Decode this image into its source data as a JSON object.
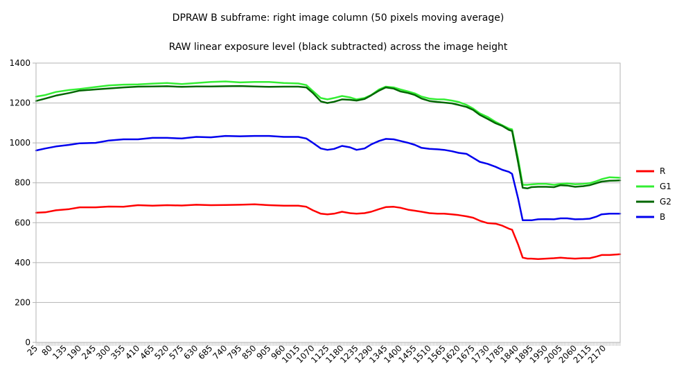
{
  "chart_data": {
    "type": "line",
    "title": "DPRAW B subframe: right image column (50 pixels moving average)",
    "subtitle": "RAW linear exposure level  (black subtracted) across the image height",
    "xlabel": "",
    "ylabel": "",
    "ylim": [
      0,
      1400
    ],
    "yticks": [
      0,
      200,
      400,
      600,
      800,
      1000,
      1200,
      1400
    ],
    "xlim": [
      25,
      2230
    ],
    "xticks": [
      25,
      80,
      135,
      190,
      245,
      300,
      355,
      410,
      465,
      520,
      575,
      630,
      685,
      740,
      795,
      850,
      905,
      960,
      1015,
      1070,
      1125,
      1180,
      1235,
      1290,
      1345,
      1400,
      1455,
      1510,
      1565,
      1620,
      1675,
      1730,
      1785,
      1840,
      1895,
      1950,
      2005,
      2060,
      2115,
      2170
    ],
    "grid": "horizontal",
    "legend_position": "right",
    "series": [
      {
        "name": "R",
        "color": "#ff0000",
        "points": [
          [
            25,
            650
          ],
          [
            60,
            652
          ],
          [
            100,
            662
          ],
          [
            150,
            668
          ],
          [
            190,
            677
          ],
          [
            250,
            677
          ],
          [
            300,
            681
          ],
          [
            355,
            680
          ],
          [
            410,
            688
          ],
          [
            465,
            685
          ],
          [
            520,
            688
          ],
          [
            575,
            686
          ],
          [
            630,
            690
          ],
          [
            685,
            688
          ],
          [
            740,
            689
          ],
          [
            795,
            690
          ],
          [
            850,
            692
          ],
          [
            905,
            688
          ],
          [
            960,
            685
          ],
          [
            1015,
            685
          ],
          [
            1045,
            680
          ],
          [
            1070,
            662
          ],
          [
            1100,
            645
          ],
          [
            1125,
            642
          ],
          [
            1150,
            645
          ],
          [
            1180,
            655
          ],
          [
            1210,
            648
          ],
          [
            1235,
            645
          ],
          [
            1265,
            648
          ],
          [
            1290,
            655
          ],
          [
            1320,
            668
          ],
          [
            1345,
            678
          ],
          [
            1375,
            680
          ],
          [
            1400,
            675
          ],
          [
            1430,
            665
          ],
          [
            1455,
            660
          ],
          [
            1480,
            655
          ],
          [
            1510,
            648
          ],
          [
            1540,
            645
          ],
          [
            1565,
            645
          ],
          [
            1595,
            642
          ],
          [
            1620,
            638
          ],
          [
            1650,
            632
          ],
          [
            1675,
            625
          ],
          [
            1700,
            610
          ],
          [
            1730,
            598
          ],
          [
            1760,
            595
          ],
          [
            1785,
            585
          ],
          [
            1810,
            570
          ],
          [
            1822,
            565
          ],
          [
            1845,
            490
          ],
          [
            1862,
            425
          ],
          [
            1880,
            420
          ],
          [
            1895,
            420
          ],
          [
            1920,
            418
          ],
          [
            1950,
            420
          ],
          [
            1980,
            422
          ],
          [
            2005,
            425
          ],
          [
            2030,
            422
          ],
          [
            2060,
            420
          ],
          [
            2090,
            422
          ],
          [
            2115,
            422
          ],
          [
            2140,
            430
          ],
          [
            2160,
            438
          ],
          [
            2190,
            438
          ],
          [
            2230,
            442
          ]
        ]
      },
      {
        "name": "G1",
        "color": "#33ee33",
        "points": [
          [
            25,
            1232
          ],
          [
            60,
            1240
          ],
          [
            100,
            1255
          ],
          [
            150,
            1265
          ],
          [
            190,
            1270
          ],
          [
            250,
            1280
          ],
          [
            300,
            1288
          ],
          [
            355,
            1292
          ],
          [
            410,
            1293
          ],
          [
            465,
            1297
          ],
          [
            520,
            1300
          ],
          [
            575,
            1295
          ],
          [
            630,
            1300
          ],
          [
            685,
            1305
          ],
          [
            740,
            1308
          ],
          [
            795,
            1303
          ],
          [
            850,
            1305
          ],
          [
            905,
            1305
          ],
          [
            960,
            1300
          ],
          [
            1015,
            1298
          ],
          [
            1045,
            1290
          ],
          [
            1070,
            1260
          ],
          [
            1100,
            1225
          ],
          [
            1125,
            1218
          ],
          [
            1150,
            1225
          ],
          [
            1180,
            1235
          ],
          [
            1210,
            1228
          ],
          [
            1235,
            1218
          ],
          [
            1265,
            1225
          ],
          [
            1290,
            1240
          ],
          [
            1320,
            1268
          ],
          [
            1345,
            1282
          ],
          [
            1375,
            1278
          ],
          [
            1400,
            1268
          ],
          [
            1430,
            1258
          ],
          [
            1455,
            1248
          ],
          [
            1480,
            1232
          ],
          [
            1510,
            1222
          ],
          [
            1540,
            1218
          ],
          [
            1565,
            1218
          ],
          [
            1595,
            1212
          ],
          [
            1620,
            1205
          ],
          [
            1650,
            1190
          ],
          [
            1675,
            1172
          ],
          [
            1700,
            1148
          ],
          [
            1730,
            1130
          ],
          [
            1760,
            1105
          ],
          [
            1785,
            1088
          ],
          [
            1810,
            1072
          ],
          [
            1822,
            1068
          ],
          [
            1845,
            920
          ],
          [
            1862,
            790
          ],
          [
            1880,
            790
          ],
          [
            1895,
            792
          ],
          [
            1920,
            795
          ],
          [
            1950,
            795
          ],
          [
            1980,
            790
          ],
          [
            2005,
            795
          ],
          [
            2030,
            797
          ],
          [
            2060,
            793
          ],
          [
            2090,
            795
          ],
          [
            2115,
            798
          ],
          [
            2140,
            808
          ],
          [
            2160,
            818
          ],
          [
            2190,
            828
          ],
          [
            2230,
            825
          ]
        ]
      },
      {
        "name": "G2",
        "color": "#006600",
        "points": [
          [
            25,
            1210
          ],
          [
            60,
            1222
          ],
          [
            100,
            1237
          ],
          [
            150,
            1250
          ],
          [
            190,
            1262
          ],
          [
            250,
            1268
          ],
          [
            300,
            1273
          ],
          [
            355,
            1278
          ],
          [
            410,
            1282
          ],
          [
            465,
            1283
          ],
          [
            520,
            1284
          ],
          [
            575,
            1281
          ],
          [
            630,
            1283
          ],
          [
            685,
            1283
          ],
          [
            740,
            1284
          ],
          [
            795,
            1285
          ],
          [
            850,
            1283
          ],
          [
            905,
            1281
          ],
          [
            960,
            1282
          ],
          [
            1015,
            1282
          ],
          [
            1045,
            1278
          ],
          [
            1070,
            1250
          ],
          [
            1100,
            1208
          ],
          [
            1125,
            1200
          ],
          [
            1150,
            1206
          ],
          [
            1180,
            1218
          ],
          [
            1210,
            1216
          ],
          [
            1235,
            1212
          ],
          [
            1265,
            1220
          ],
          [
            1290,
            1238
          ],
          [
            1320,
            1262
          ],
          [
            1345,
            1278
          ],
          [
            1375,
            1272
          ],
          [
            1400,
            1258
          ],
          [
            1430,
            1250
          ],
          [
            1455,
            1240
          ],
          [
            1480,
            1222
          ],
          [
            1510,
            1210
          ],
          [
            1540,
            1205
          ],
          [
            1565,
            1202
          ],
          [
            1595,
            1198
          ],
          [
            1620,
            1190
          ],
          [
            1650,
            1180
          ],
          [
            1675,
            1165
          ],
          [
            1700,
            1140
          ],
          [
            1730,
            1120
          ],
          [
            1760,
            1098
          ],
          [
            1785,
            1085
          ],
          [
            1810,
            1065
          ],
          [
            1822,
            1060
          ],
          [
            1845,
            900
          ],
          [
            1862,
            775
          ],
          [
            1880,
            772
          ],
          [
            1895,
            778
          ],
          [
            1920,
            780
          ],
          [
            1950,
            780
          ],
          [
            1980,
            778
          ],
          [
            2005,
            788
          ],
          [
            2030,
            786
          ],
          [
            2060,
            780
          ],
          [
            2090,
            783
          ],
          [
            2115,
            788
          ],
          [
            2140,
            798
          ],
          [
            2160,
            806
          ],
          [
            2190,
            810
          ],
          [
            2230,
            812
          ]
        ]
      },
      {
        "name": "B",
        "color": "#0000ee",
        "points": [
          [
            25,
            962
          ],
          [
            60,
            972
          ],
          [
            100,
            982
          ],
          [
            150,
            990
          ],
          [
            190,
            998
          ],
          [
            250,
            1000
          ],
          [
            300,
            1012
          ],
          [
            355,
            1018
          ],
          [
            410,
            1018
          ],
          [
            465,
            1025
          ],
          [
            520,
            1025
          ],
          [
            575,
            1022
          ],
          [
            630,
            1030
          ],
          [
            685,
            1028
          ],
          [
            740,
            1035
          ],
          [
            795,
            1033
          ],
          [
            850,
            1035
          ],
          [
            905,
            1035
          ],
          [
            960,
            1030
          ],
          [
            1015,
            1030
          ],
          [
            1045,
            1022
          ],
          [
            1070,
            1000
          ],
          [
            1100,
            972
          ],
          [
            1125,
            965
          ],
          [
            1150,
            970
          ],
          [
            1180,
            985
          ],
          [
            1210,
            978
          ],
          [
            1235,
            965
          ],
          [
            1265,
            972
          ],
          [
            1290,
            992
          ],
          [
            1320,
            1010
          ],
          [
            1345,
            1020
          ],
          [
            1375,
            1018
          ],
          [
            1400,
            1010
          ],
          [
            1430,
            1000
          ],
          [
            1455,
            990
          ],
          [
            1480,
            975
          ],
          [
            1510,
            970
          ],
          [
            1540,
            968
          ],
          [
            1565,
            965
          ],
          [
            1595,
            958
          ],
          [
            1620,
            950
          ],
          [
            1650,
            945
          ],
          [
            1675,
            925
          ],
          [
            1700,
            905
          ],
          [
            1730,
            895
          ],
          [
            1760,
            880
          ],
          [
            1785,
            865
          ],
          [
            1810,
            855
          ],
          [
            1822,
            845
          ],
          [
            1845,
            720
          ],
          [
            1862,
            612
          ],
          [
            1880,
            612
          ],
          [
            1895,
            612
          ],
          [
            1920,
            617
          ],
          [
            1950,
            618
          ],
          [
            1980,
            617
          ],
          [
            2005,
            622
          ],
          [
            2030,
            622
          ],
          [
            2060,
            617
          ],
          [
            2090,
            618
          ],
          [
            2115,
            620
          ],
          [
            2140,
            630
          ],
          [
            2160,
            642
          ],
          [
            2190,
            645
          ],
          [
            2230,
            645
          ]
        ]
      }
    ]
  }
}
